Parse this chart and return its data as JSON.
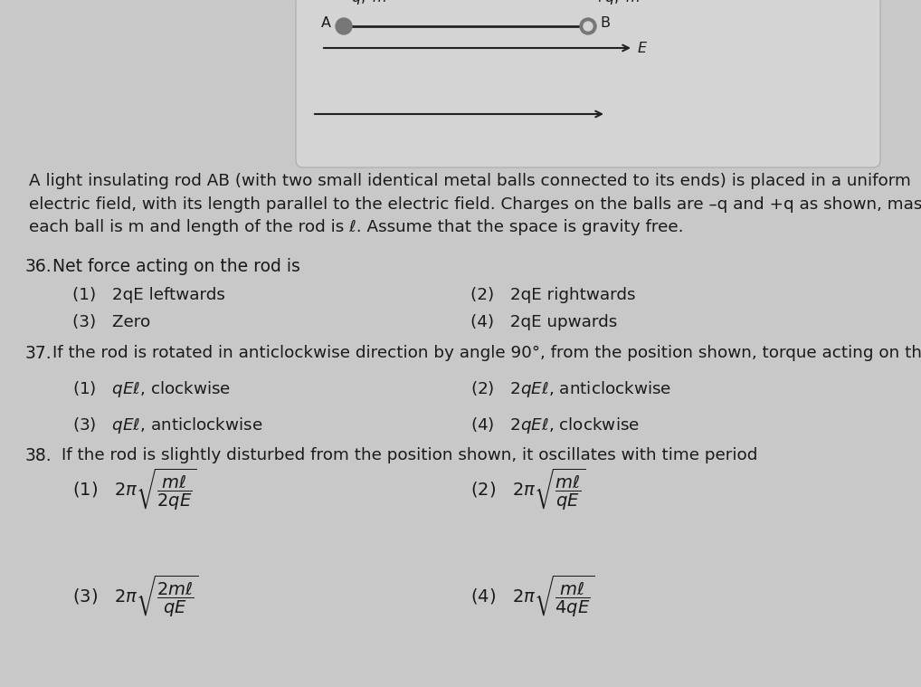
{
  "fig_bg": "#c8c8c8",
  "box_color": "#d8d8d8",
  "text_color": "#1a1a1a",
  "paragraph": "A light insulating rod AB (with two small identical metal balls connected to its ends) is placed in a uniform\nelectric field, with its length parallel to the electric field. Charges on the balls are –q and +q as shown, mass of\neach ball is m and length of the rod is ℓ. Assume that the space is gravity free.",
  "q36_label": "36.",
  "q36_text": "Net force acting on the rod is",
  "q36_opt1": "(1)   2qE leftwards",
  "q36_opt2": "(2)   2qE rightwards",
  "q36_opt3": "(3)   Zero",
  "q36_opt4": "(4)   2qE upwards",
  "q37_label": "37.",
  "q37_text": "If the rod is rotated in anticlockwise direction by angle 90°, from the position shown, torque acting on the rod will be",
  "q37_opt1_l": "(1)   $qE\\ell$, clockwise",
  "q37_opt2_r": "(2)   $2qE\\ell$, anticlockwise",
  "q37_opt3_l": "(3)   $qE\\ell$, anticlockwise",
  "q37_opt4_r": "(4)   $2qE\\ell$, clockwise",
  "q38_label": "38.",
  "q38_text": "If the rod is slightly disturbed from the position shown, it oscillates with time period",
  "q38_opt1_l": "(1)   $2\\pi\\sqrt{\\dfrac{m\\ell}{2qE}}$",
  "q38_opt2_r": "(2)   $2\\pi\\sqrt{\\dfrac{m\\ell}{qE}}$",
  "q38_opt3_l": "(3)   $2\\pi\\sqrt{\\dfrac{2m\\ell}{qE}}$",
  "q38_opt4_r": "(4)   $2\\pi\\sqrt{\\dfrac{m\\ell}{4qE}}$"
}
